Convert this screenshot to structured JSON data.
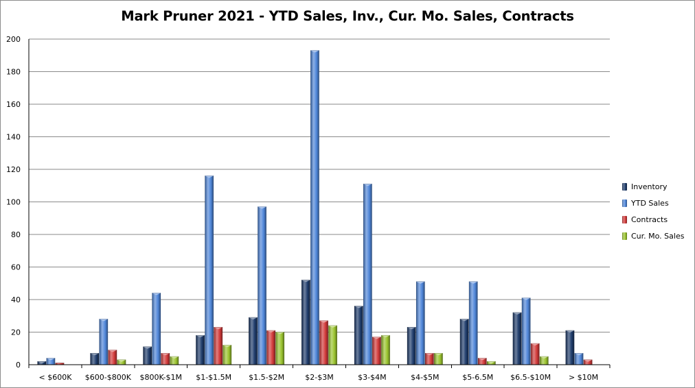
{
  "chart_data": {
    "type": "bar",
    "title": "Mark Pruner 2021 - YTD Sales, Inv., Cur. Mo. Sales, Contracts",
    "categories": [
      "< $600K",
      "$600-$800K",
      "$800K-$1M",
      "$1-$1.5M",
      "$1.5-$2M",
      "$2-$3M",
      "$3-$4M",
      "$4-$5M",
      "$5-6.5M",
      "$6.5-$10M",
      "> $10M"
    ],
    "series": [
      {
        "name": "Inventory",
        "color": "#1f3c6b",
        "values": [
          2,
          7,
          11,
          18,
          29,
          52,
          36,
          23,
          28,
          32,
          21
        ]
      },
      {
        "name": "YTD Sales",
        "color": "#4f86d9",
        "values": [
          4,
          28,
          44,
          116,
          97,
          193,
          111,
          51,
          51,
          41,
          7
        ]
      },
      {
        "name": "Contracts",
        "color": "#d23a3a",
        "values": [
          1,
          9,
          7,
          23,
          21,
          27,
          17,
          7,
          4,
          13,
          3
        ]
      },
      {
        "name": "Cur. Mo. Sales",
        "color": "#9bc42f",
        "values": [
          0,
          3,
          5,
          12,
          20,
          24,
          18,
          7,
          2,
          5,
          0
        ]
      }
    ],
    "ylim": [
      0,
      200
    ],
    "yticks": [
      0,
      20,
      40,
      60,
      80,
      100,
      120,
      140,
      160,
      180,
      200
    ],
    "grid": true,
    "legend_position": "right"
  }
}
